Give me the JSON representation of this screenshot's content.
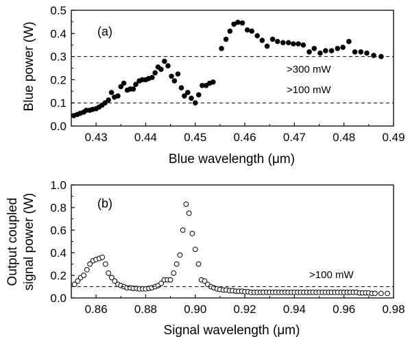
{
  "chart_data": [
    {
      "type": "scatter",
      "panel_label": "(a)",
      "xlabel": "Blue wavelength (μm)",
      "ylabel": "Blue power (W)",
      "xlim": [
        0.425,
        0.49
      ],
      "ylim": [
        0.0,
        0.5
      ],
      "xticks": [
        "0.43",
        "0.44",
        "0.45",
        "0.46",
        "0.47",
        "0.48",
        "0.49"
      ],
      "yticks": [
        "0.0",
        "0.1",
        "0.2",
        "0.3",
        "0.4",
        "0.5"
      ],
      "marker": "filled-circle",
      "marker_color": "#000000",
      "grid": false,
      "reference_lines": [
        {
          "y": 0.3,
          "label": ">300 mW",
          "style": "dashed"
        },
        {
          "y": 0.1,
          "label": ">100 mW",
          "style": "dashed"
        }
      ],
      "points": [
        [
          0.4255,
          0.045
        ],
        [
          0.4262,
          0.05
        ],
        [
          0.4268,
          0.055
        ],
        [
          0.4275,
          0.06
        ],
        [
          0.428,
          0.068
        ],
        [
          0.4287,
          0.068
        ],
        [
          0.4293,
          0.072
        ],
        [
          0.43,
          0.075
        ],
        [
          0.4306,
          0.082
        ],
        [
          0.4312,
          0.09
        ],
        [
          0.4318,
          0.1
        ],
        [
          0.4325,
          0.112
        ],
        [
          0.4331,
          0.145
        ],
        [
          0.4337,
          0.125
        ],
        [
          0.4344,
          0.13
        ],
        [
          0.435,
          0.17
        ],
        [
          0.4356,
          0.185
        ],
        [
          0.4363,
          0.155
        ],
        [
          0.4369,
          0.16
        ],
        [
          0.4375,
          0.16
        ],
        [
          0.438,
          0.18
        ],
        [
          0.4387,
          0.195
        ],
        [
          0.4393,
          0.2
        ],
        [
          0.44,
          0.2
        ],
        [
          0.4406,
          0.205
        ],
        [
          0.4413,
          0.21
        ],
        [
          0.4419,
          0.23
        ],
        [
          0.4425,
          0.255
        ],
        [
          0.4431,
          0.245
        ],
        [
          0.4438,
          0.28
        ],
        [
          0.4445,
          0.26
        ],
        [
          0.4452,
          0.215
        ],
        [
          0.4458,
          0.195
        ],
        [
          0.4465,
          0.225
        ],
        [
          0.4472,
          0.165
        ],
        [
          0.4478,
          0.13
        ],
        [
          0.4485,
          0.145
        ],
        [
          0.4492,
          0.12
        ],
        [
          0.45,
          0.1
        ],
        [
          0.4507,
          0.135
        ],
        [
          0.4514,
          0.175
        ],
        [
          0.4522,
          0.175
        ],
        [
          0.4529,
          0.185
        ],
        [
          0.4536,
          0.19
        ],
        [
          0.4553,
          0.335
        ],
        [
          0.4562,
          0.375
        ],
        [
          0.457,
          0.41
        ],
        [
          0.4578,
          0.44
        ],
        [
          0.4586,
          0.448
        ],
        [
          0.4595,
          0.445
        ],
        [
          0.4605,
          0.415
        ],
        [
          0.4614,
          0.41
        ],
        [
          0.4625,
          0.39
        ],
        [
          0.4635,
          0.37
        ],
        [
          0.4645,
          0.345
        ],
        [
          0.4656,
          0.375
        ],
        [
          0.4666,
          0.365
        ],
        [
          0.4677,
          0.36
        ],
        [
          0.4688,
          0.36
        ],
        [
          0.4698,
          0.355
        ],
        [
          0.4708,
          0.355
        ],
        [
          0.4718,
          0.35
        ],
        [
          0.473,
          0.32
        ],
        [
          0.474,
          0.335
        ],
        [
          0.4752,
          0.315
        ],
        [
          0.4763,
          0.325
        ],
        [
          0.4775,
          0.325
        ],
        [
          0.4787,
          0.335
        ],
        [
          0.4798,
          0.34
        ],
        [
          0.481,
          0.365
        ],
        [
          0.4822,
          0.32
        ],
        [
          0.4834,
          0.32
        ],
        [
          0.4846,
          0.315
        ],
        [
          0.486,
          0.305
        ],
        [
          0.4875,
          0.3
        ]
      ]
    },
    {
      "type": "scatter",
      "panel_label": "(b)",
      "xlabel": "Signal wavelength (μm)",
      "ylabel": [
        "Output coupled",
        "signal power (W)"
      ],
      "xlim": [
        0.85,
        0.98
      ],
      "ylim": [
        0.0,
        1.0
      ],
      "xticks": [
        "0.86",
        "0.88",
        "0.90",
        "0.92",
        "0.94",
        "0.96",
        "0.98"
      ],
      "yticks": [
        "0.0",
        "0.2",
        "0.4",
        "0.6",
        "0.8",
        "1.0"
      ],
      "marker": "open-circle",
      "marker_color": "#000000",
      "grid": false,
      "reference_lines": [
        {
          "y": 0.1,
          "label": ">100 mW",
          "style": "dashed"
        }
      ],
      "points": [
        [
          0.8513,
          0.12
        ],
        [
          0.8526,
          0.15
        ],
        [
          0.8538,
          0.18
        ],
        [
          0.855,
          0.2
        ],
        [
          0.8563,
          0.25
        ],
        [
          0.8575,
          0.3
        ],
        [
          0.8588,
          0.33
        ],
        [
          0.86,
          0.34
        ],
        [
          0.8613,
          0.35
        ],
        [
          0.8625,
          0.36
        ],
        [
          0.8638,
          0.3
        ],
        [
          0.865,
          0.22
        ],
        [
          0.8663,
          0.18
        ],
        [
          0.8675,
          0.15
        ],
        [
          0.8688,
          0.12
        ],
        [
          0.87,
          0.11
        ],
        [
          0.8713,
          0.1
        ],
        [
          0.8725,
          0.09
        ],
        [
          0.8738,
          0.09
        ],
        [
          0.875,
          0.085
        ],
        [
          0.8763,
          0.085
        ],
        [
          0.8775,
          0.08
        ],
        [
          0.8788,
          0.08
        ],
        [
          0.88,
          0.08
        ],
        [
          0.8813,
          0.085
        ],
        [
          0.8825,
          0.09
        ],
        [
          0.8838,
          0.1
        ],
        [
          0.885,
          0.11
        ],
        [
          0.8863,
          0.13
        ],
        [
          0.8875,
          0.16
        ],
        [
          0.8888,
          0.16
        ],
        [
          0.89,
          0.16
        ],
        [
          0.8913,
          0.22
        ],
        [
          0.8925,
          0.3
        ],
        [
          0.8938,
          0.38
        ],
        [
          0.895,
          0.6
        ],
        [
          0.8963,
          0.83
        ],
        [
          0.8975,
          0.75
        ],
        [
          0.8988,
          0.57
        ],
        [
          0.9,
          0.43
        ],
        [
          0.9013,
          0.3
        ],
        [
          0.9025,
          0.16
        ],
        [
          0.9038,
          0.15
        ],
        [
          0.905,
          0.12
        ],
        [
          0.9063,
          0.1
        ],
        [
          0.9075,
          0.09
        ],
        [
          0.9088,
          0.08
        ],
        [
          0.91,
          0.075
        ],
        [
          0.9113,
          0.07
        ],
        [
          0.9125,
          0.07
        ],
        [
          0.9138,
          0.065
        ],
        [
          0.915,
          0.065
        ],
        [
          0.9163,
          0.06
        ],
        [
          0.9175,
          0.06
        ],
        [
          0.9188,
          0.06
        ],
        [
          0.92,
          0.055
        ],
        [
          0.9213,
          0.055
        ],
        [
          0.9225,
          0.05
        ],
        [
          0.9238,
          0.05
        ],
        [
          0.925,
          0.05
        ],
        [
          0.9263,
          0.05
        ],
        [
          0.9275,
          0.05
        ],
        [
          0.9288,
          0.05
        ],
        [
          0.93,
          0.05
        ],
        [
          0.9313,
          0.05
        ],
        [
          0.9325,
          0.05
        ],
        [
          0.9338,
          0.05
        ],
        [
          0.935,
          0.05
        ],
        [
          0.9363,
          0.05
        ],
        [
          0.9375,
          0.05
        ],
        [
          0.9388,
          0.05
        ],
        [
          0.94,
          0.05
        ],
        [
          0.9413,
          0.05
        ],
        [
          0.9425,
          0.05
        ],
        [
          0.9438,
          0.05
        ],
        [
          0.945,
          0.05
        ],
        [
          0.9463,
          0.05
        ],
        [
          0.9475,
          0.05
        ],
        [
          0.9488,
          0.05
        ],
        [
          0.95,
          0.05
        ],
        [
          0.9513,
          0.05
        ],
        [
          0.9525,
          0.05
        ],
        [
          0.9538,
          0.05
        ],
        [
          0.955,
          0.05
        ],
        [
          0.9563,
          0.05
        ],
        [
          0.9575,
          0.05
        ],
        [
          0.9588,
          0.05
        ],
        [
          0.96,
          0.05
        ],
        [
          0.9613,
          0.05
        ],
        [
          0.9625,
          0.05
        ],
        [
          0.9638,
          0.05
        ],
        [
          0.965,
          0.05
        ],
        [
          0.9663,
          0.045
        ],
        [
          0.9675,
          0.045
        ],
        [
          0.9688,
          0.045
        ],
        [
          0.97,
          0.045
        ],
        [
          0.9713,
          0.04
        ],
        [
          0.9725,
          0.04
        ],
        [
          0.975,
          0.04
        ],
        [
          0.9775,
          0.04
        ]
      ]
    }
  ]
}
